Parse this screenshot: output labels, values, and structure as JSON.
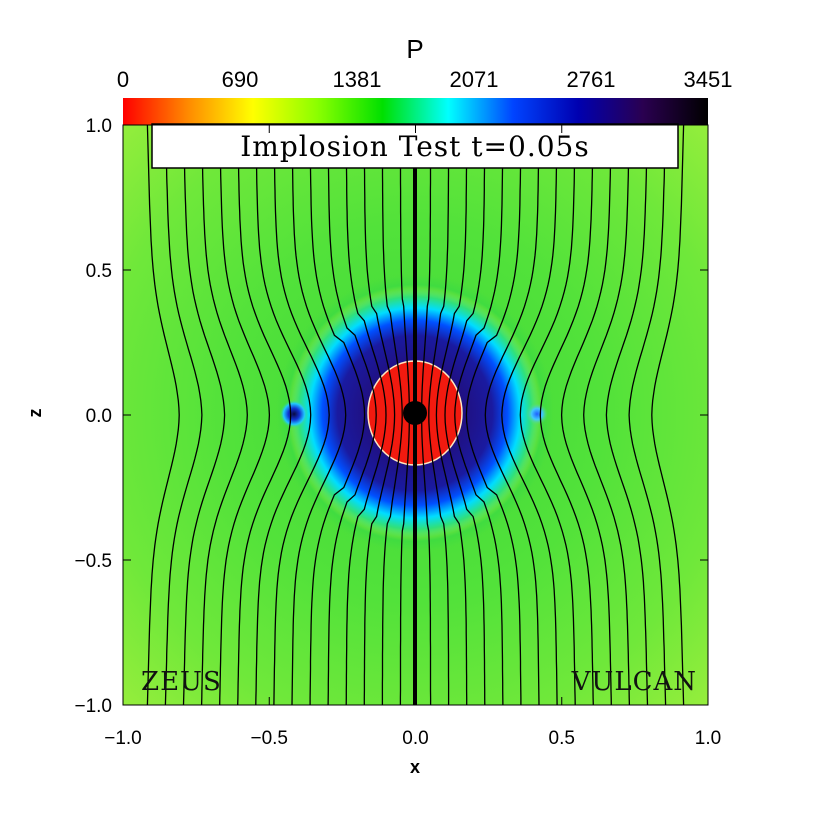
{
  "chart_data": {
    "type": "heatmap",
    "title": "Implosion Test t=0.05s",
    "xlabel": "x",
    "ylabel": "z",
    "xlim": [
      -1.0,
      1.0
    ],
    "ylim": [
      -1.0,
      1.0
    ],
    "x_ticks": [
      "−1.0",
      "−0.5",
      "0.0",
      "0.5",
      "1.0"
    ],
    "x_tick_values": [
      -1.0,
      -0.5,
      0.0,
      0.5,
      1.0
    ],
    "y_ticks": [
      "1.0",
      "0.5",
      "0.0",
      "−0.5",
      "−1.0"
    ],
    "y_tick_values": [
      1.0,
      0.5,
      0.0,
      -0.5,
      -1.0
    ],
    "colorbar": {
      "label": "P",
      "ticks": [
        "0",
        "690",
        "1381",
        "2071",
        "2761",
        "3451"
      ],
      "range": [
        0,
        3451
      ],
      "colors": [
        "#ff0000",
        "#ff8a00",
        "#ffff00",
        "#8aff00",
        "#00e000",
        "#00ffff",
        "#0044ff",
        "#0000b0",
        "#2a0050",
        "#000000"
      ]
    },
    "background_pressure": 1200,
    "central_pressure": 0,
    "panels": [
      {
        "name": "ZEUS",
        "x_range": [
          -1.0,
          0.0
        ]
      },
      {
        "name": "VULCAN",
        "x_range": [
          0.0,
          1.0
        ]
      }
    ],
    "field_lines": {
      "count_per_side": 15,
      "footpoints_at_top": [
        0.05,
        0.11,
        0.17,
        0.23,
        0.29,
        0.35,
        0.41,
        0.47,
        0.53,
        0.59,
        0.65,
        0.71,
        0.77,
        0.83,
        0.89
      ]
    },
    "features": {
      "core_radius": 0.15,
      "high_pressure_ring_radius": 0.25,
      "shock_radius": 0.38,
      "vortex_points": [
        [
          -0.41,
          0.0
        ],
        [
          0.42,
          0.0
        ]
      ]
    },
    "grid": false
  }
}
